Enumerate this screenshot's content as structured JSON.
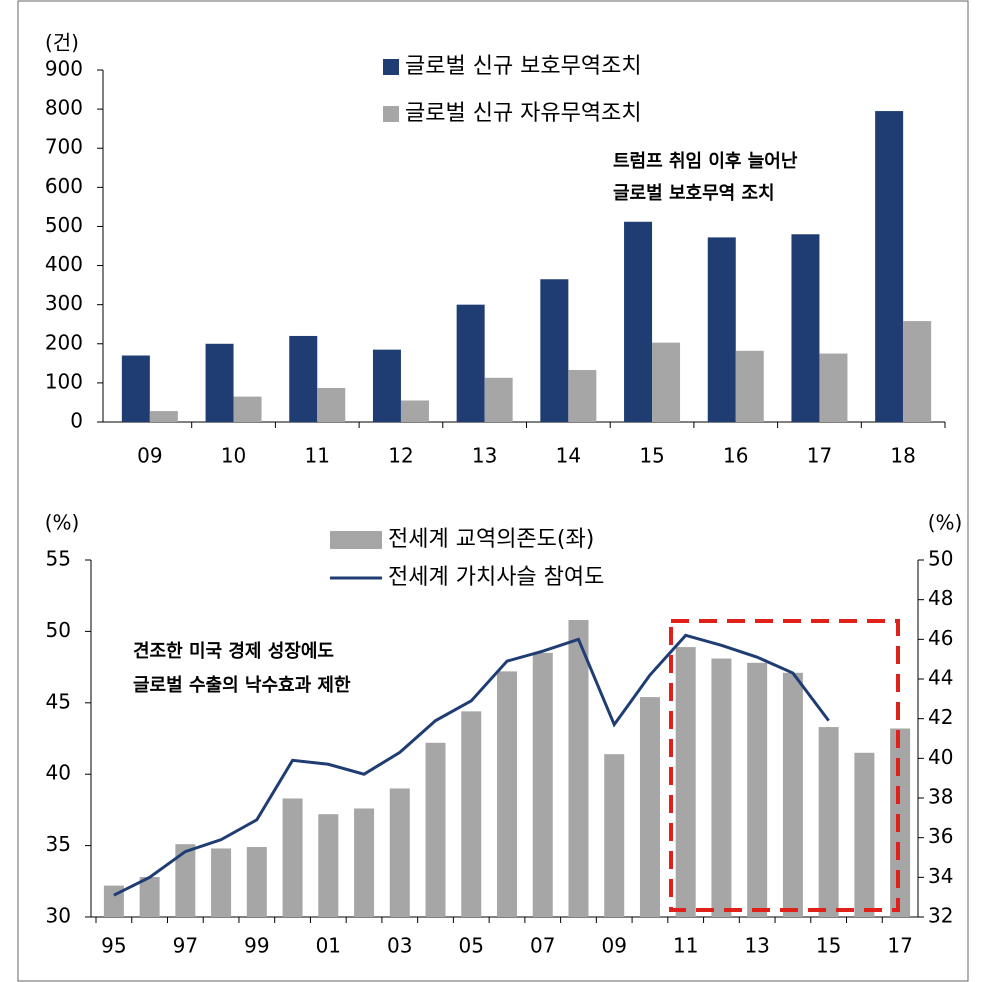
{
  "chart_data": [
    {
      "type": "bar",
      "y_unit": "(건)",
      "categories": [
        "09",
        "10",
        "11",
        "12",
        "13",
        "14",
        "15",
        "16",
        "17",
        "18"
      ],
      "series": [
        {
          "name": "글로벌 신규 보호무역조치",
          "color": "#1f3d73",
          "values": [
            170,
            200,
            220,
            185,
            300,
            365,
            512,
            472,
            480,
            795
          ]
        },
        {
          "name": "글로벌 신규 자유무역조치",
          "color": "#a6a6a6",
          "values": [
            28,
            65,
            87,
            55,
            113,
            133,
            203,
            182,
            175,
            258
          ]
        }
      ],
      "ylim": [
        0,
        900
      ],
      "yticks": [
        0,
        100,
        200,
        300,
        400,
        500,
        600,
        700,
        800,
        900
      ],
      "annotation": [
        "트럼프 취임 이후 늘어난",
        "글로벌 보호무역 조치"
      ]
    },
    {
      "type": "bar_line",
      "y_unit": "(%)",
      "y2_unit": "(%)",
      "categories": [
        "95",
        null,
        "97",
        null,
        "99",
        null,
        "01",
        null,
        "03",
        null,
        "05",
        null,
        "07",
        null,
        "09",
        null,
        "11",
        null,
        "13",
        null,
        "15",
        null,
        "17"
      ],
      "series": [
        {
          "name": "전세계 교역의존도(좌)",
          "color": "#a6a6a6",
          "kind": "bar",
          "values": [
            32.2,
            32.8,
            35.1,
            34.8,
            34.9,
            38.3,
            37.2,
            37.6,
            39.0,
            42.2,
            44.4,
            47.2,
            48.5,
            50.8,
            41.4,
            45.4,
            48.9,
            48.1,
            47.8,
            47.1,
            43.3,
            41.5,
            43.2
          ]
        },
        {
          "name": "전세계 가치사슬 참여도",
          "color": "#1f3d73",
          "kind": "line",
          "axis": "y2",
          "values": [
            33.1,
            34.0,
            35.3,
            35.9,
            36.9,
            39.9,
            39.7,
            39.2,
            40.3,
            41.9,
            42.9,
            44.9,
            45.4,
            46.0,
            41.7,
            44.2,
            46.2,
            45.7,
            45.1,
            44.3,
            41.9,
            null,
            null
          ]
        }
      ],
      "ylim": [
        30,
        55
      ],
      "yticks": [
        30,
        35,
        40,
        45,
        50,
        55
      ],
      "y2lim": [
        32,
        50
      ],
      "y2ticks": [
        32,
        34,
        36,
        38,
        40,
        42,
        44,
        46,
        48,
        50
      ],
      "annotation": [
        "견조한 미국 경제 성장에도",
        "글로벌 수출의 낙수효과 제한"
      ]
    }
  ]
}
